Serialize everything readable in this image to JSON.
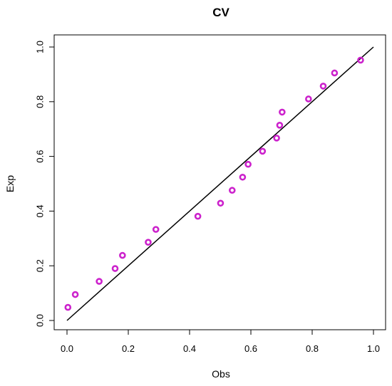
{
  "chart_data": {
    "type": "scatter",
    "title": "CV",
    "xlabel": "Obs",
    "ylabel": "Exp",
    "xlim": [
      0,
      1
    ],
    "ylim": [
      0,
      1
    ],
    "x_ticks": [
      0.0,
      0.2,
      0.4,
      0.6,
      0.8,
      1.0
    ],
    "y_ticks": [
      0.0,
      0.2,
      0.4,
      0.6,
      0.8,
      1.0
    ],
    "x_tick_labels": [
      "0.0",
      "0.2",
      "0.4",
      "0.6",
      "0.8",
      "1.0"
    ],
    "y_tick_labels": [
      "0.0",
      "0.2",
      "0.4",
      "0.6",
      "0.8",
      "1.0"
    ],
    "grid": false,
    "reference_line": {
      "x": [
        0,
        1
      ],
      "y": [
        0,
        1
      ],
      "color": "#000000"
    },
    "point_color": "#cc22cc",
    "points": [
      {
        "x": 0.003,
        "y": 0.048
      },
      {
        "x": 0.027,
        "y": 0.095
      },
      {
        "x": 0.105,
        "y": 0.143
      },
      {
        "x": 0.157,
        "y": 0.19
      },
      {
        "x": 0.181,
        "y": 0.238
      },
      {
        "x": 0.265,
        "y": 0.286
      },
      {
        "x": 0.29,
        "y": 0.333
      },
      {
        "x": 0.427,
        "y": 0.381
      },
      {
        "x": 0.501,
        "y": 0.429
      },
      {
        "x": 0.539,
        "y": 0.476
      },
      {
        "x": 0.573,
        "y": 0.524
      },
      {
        "x": 0.591,
        "y": 0.571
      },
      {
        "x": 0.638,
        "y": 0.619
      },
      {
        "x": 0.684,
        "y": 0.667
      },
      {
        "x": 0.694,
        "y": 0.714
      },
      {
        "x": 0.702,
        "y": 0.762
      },
      {
        "x": 0.788,
        "y": 0.81
      },
      {
        "x": 0.836,
        "y": 0.857
      },
      {
        "x": 0.873,
        "y": 0.905
      },
      {
        "x": 0.958,
        "y": 0.952
      }
    ]
  }
}
